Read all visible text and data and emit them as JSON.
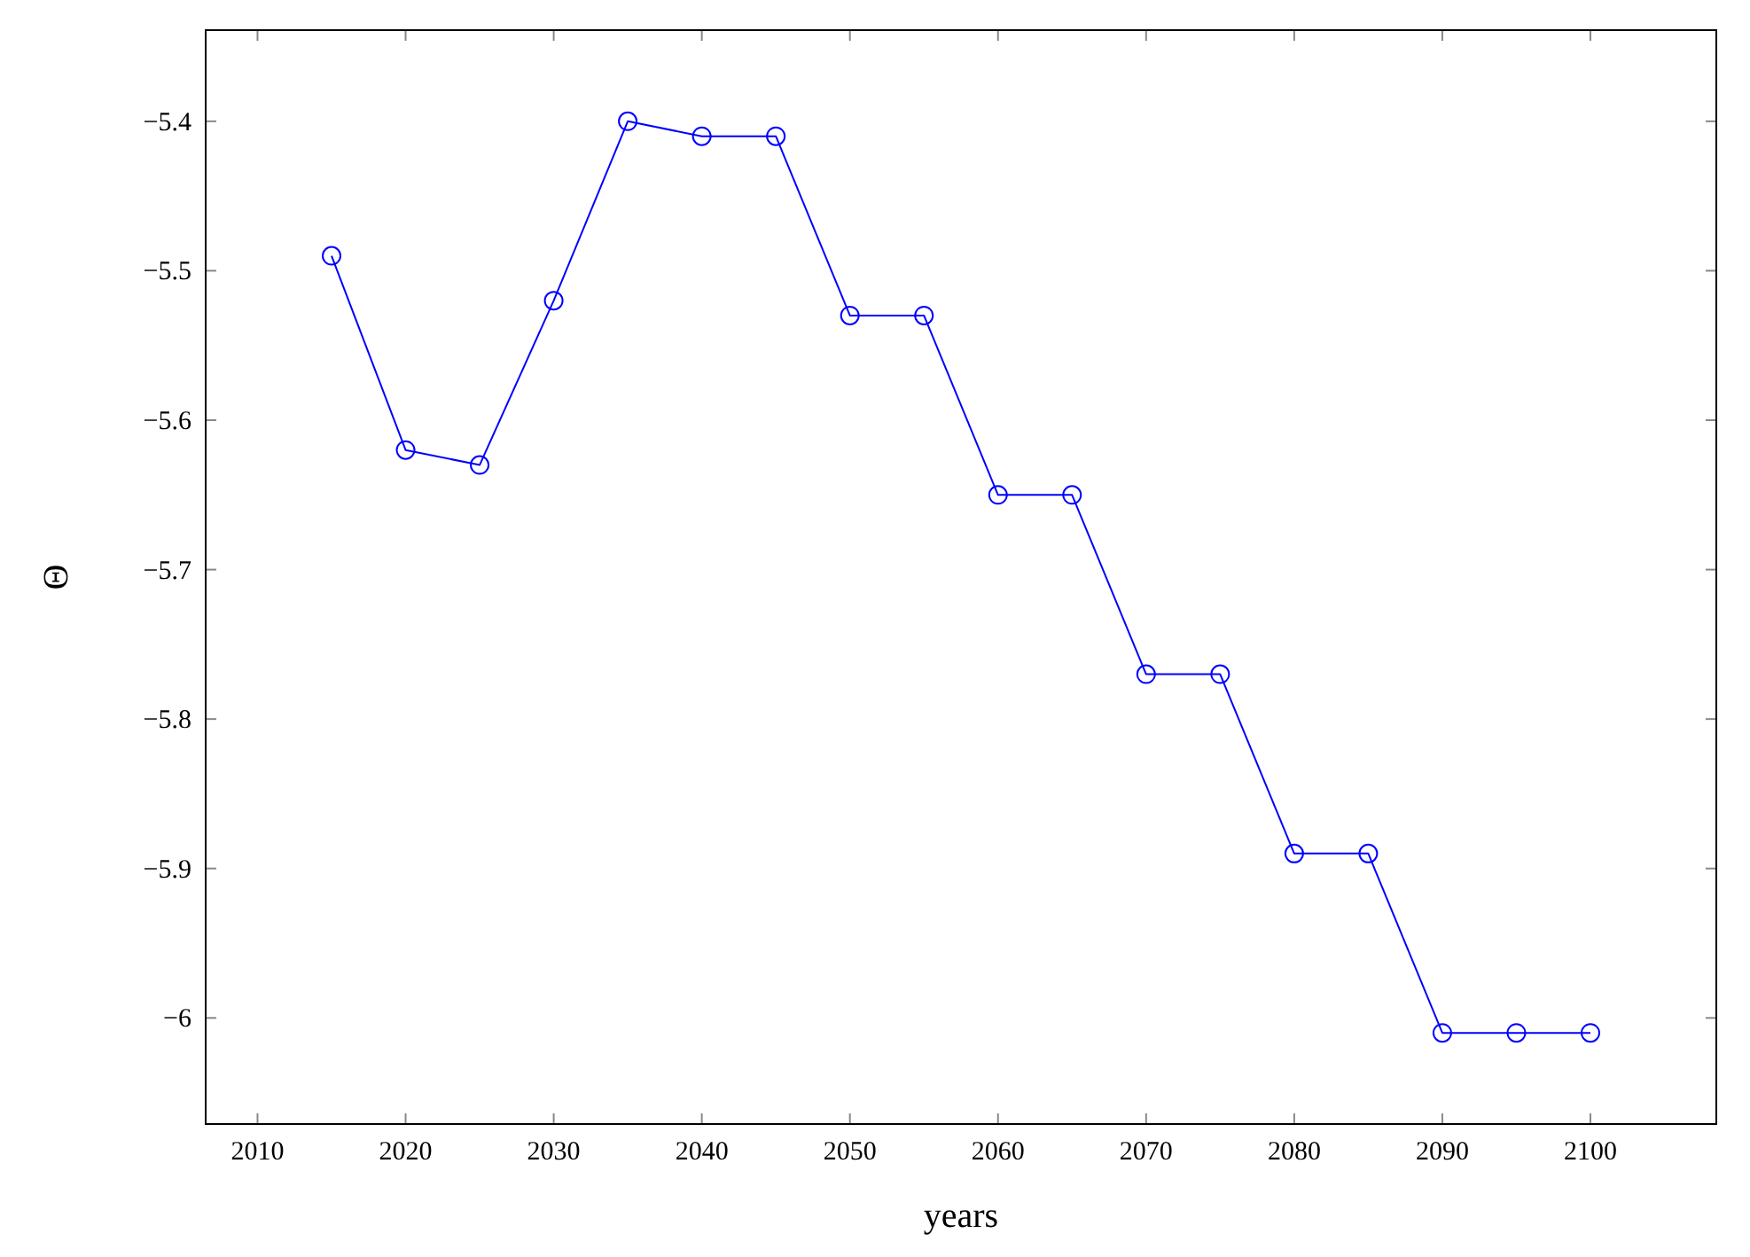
{
  "chart_data": {
    "type": "line",
    "xlabel": "years",
    "ylabel": "Θ",
    "color": "#0000ff",
    "marker": "circle",
    "line_style": "solid",
    "grid": false,
    "legend": false,
    "x": [
      2015,
      2020,
      2025,
      2030,
      2035,
      2040,
      2045,
      2050,
      2055,
      2060,
      2065,
      2070,
      2075,
      2080,
      2085,
      2090,
      2095,
      2100
    ],
    "values": [
      -5.49,
      -5.62,
      -5.63,
      -5.52,
      -5.4,
      -5.41,
      -5.41,
      -5.53,
      -5.53,
      -5.65,
      -5.65,
      -5.77,
      -5.77,
      -5.89,
      -5.89,
      -6.01,
      -6.01,
      -6.01
    ],
    "xlim": [
      2006.5,
      2108.5
    ],
    "ylim": [
      -6.071,
      -5.339
    ],
    "xticks": [
      2010,
      2020,
      2030,
      2040,
      2050,
      2060,
      2070,
      2080,
      2090,
      2100
    ],
    "yticks": [
      {
        "value": -6,
        "label": "−6"
      },
      {
        "value": -5.9,
        "label": "−5.9"
      },
      {
        "value": -5.8,
        "label": "−5.8"
      },
      {
        "value": -5.7,
        "label": "−5.7"
      },
      {
        "value": -5.6,
        "label": "−5.6"
      },
      {
        "value": -5.5,
        "label": "−5.5"
      },
      {
        "value": -5.4,
        "label": "−5.4"
      }
    ]
  }
}
